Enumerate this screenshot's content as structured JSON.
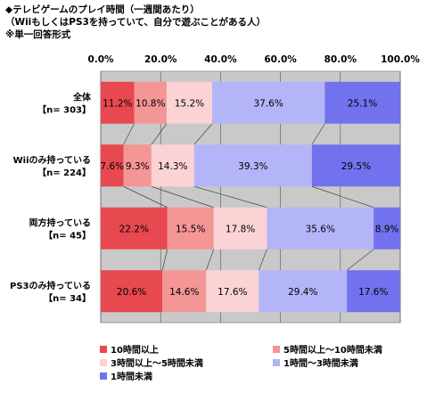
{
  "titles": {
    "line1": "◆テレビゲームのプレイ時間（一週間あたり）",
    "line2": "（WiiもしくはPS3を持っていて、自分で遊ぶことがある人）",
    "line3": "※単一回答形式"
  },
  "chart_data": {
    "type": "bar",
    "orientation": "horizontal",
    "stacked": true,
    "percent_stacked": true,
    "xlim": [
      0,
      100
    ],
    "x_ticks": [
      "0.0%",
      "20.0%",
      "40.0%",
      "60.0%",
      "80.0%",
      "100.0%"
    ],
    "grid": true,
    "legend_position": "bottom",
    "categories": [
      {
        "label": "全体",
        "n": "【n= 303】"
      },
      {
        "label": "Wiiのみ持っている",
        "n": "【n= 224】"
      },
      {
        "label": "両方持っている",
        "n": "【n= 45】"
      },
      {
        "label": "PS3のみ持っている",
        "n": "【n= 34】"
      }
    ],
    "series": [
      {
        "name": "10時間以上",
        "color": "#e84850",
        "values": [
          11.2,
          7.6,
          22.2,
          20.6
        ],
        "labels": [
          "11.2%",
          "7.6%",
          "22.2%",
          "20.6%"
        ]
      },
      {
        "name": "5時間以上～10時間未満",
        "color": "#f49596",
        "values": [
          10.8,
          9.3,
          15.5,
          14.6
        ],
        "labels": [
          "10.8%",
          "9.3%",
          "15.5%",
          "14.6%"
        ]
      },
      {
        "name": "3時間以上～5時間未満",
        "color": "#fbd3d5",
        "values": [
          15.2,
          14.3,
          17.8,
          17.6
        ],
        "labels": [
          "15.2%",
          "14.3%",
          "17.8%",
          "17.6%"
        ]
      },
      {
        "name": "1時間～3時間未満",
        "color": "#b4b4f8",
        "values": [
          37.6,
          39.3,
          35.6,
          29.4
        ],
        "labels": [
          "37.6%",
          "39.3%",
          "35.6%",
          "29.4%"
        ]
      },
      {
        "name": "1時間未満",
        "color": "#7272ee",
        "values": [
          25.1,
          29.5,
          8.9,
          17.6
        ],
        "labels": [
          "25.1%",
          "29.5%",
          "8.9%",
          "17.6%"
        ]
      }
    ]
  }
}
